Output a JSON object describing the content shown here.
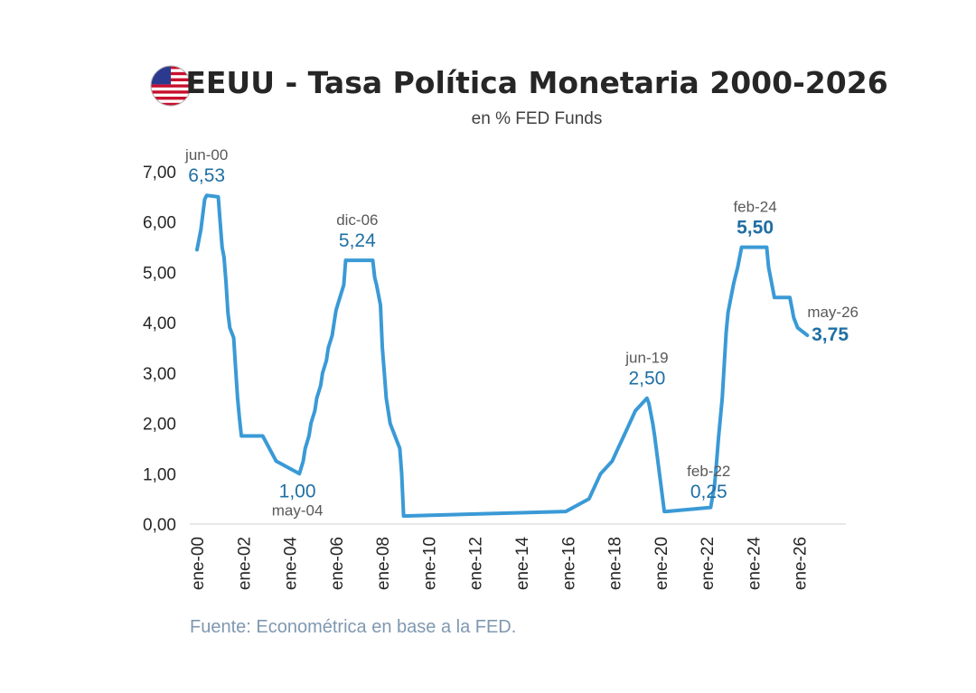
{
  "header": {
    "title": "EEUU - Tasa Política Monetaria 2000-2026",
    "subtitle": "en % FED Funds",
    "flag_icon": "us-flag-icon"
  },
  "footer": {
    "source": "Fuente: Econométrica en base a la FED."
  },
  "colors": {
    "line": "#3a9ad6",
    "annotation_value": "#1f6fa3",
    "annotation_date": "#595959",
    "axis": "#d9d9d9",
    "source": "#7f98b0"
  },
  "chart_data": {
    "type": "line",
    "title": "EEUU - Tasa Política Monetaria 2000-2026",
    "subtitle": "en % FED Funds",
    "xlabel": "",
    "ylabel": "",
    "ylim": [
      0,
      7
    ],
    "xlim": [
      "2000-01",
      "2028-01"
    ],
    "grid": false,
    "legend": "none",
    "y_ticks": [
      "0,00",
      "1,00",
      "2,00",
      "3,00",
      "4,00",
      "5,00",
      "6,00",
      "7,00"
    ],
    "x_ticks": [
      {
        "date": "2000-01",
        "label": "ene-00"
      },
      {
        "date": "2002-01",
        "label": "ene-02"
      },
      {
        "date": "2004-01",
        "label": "ene-04"
      },
      {
        "date": "2006-01",
        "label": "ene-06"
      },
      {
        "date": "2008-01",
        "label": "ene-08"
      },
      {
        "date": "2010-01",
        "label": "ene-10"
      },
      {
        "date": "2012-01",
        "label": "ene-12"
      },
      {
        "date": "2014-01",
        "label": "ene-14"
      },
      {
        "date": "2016-01",
        "label": "ene-16"
      },
      {
        "date": "2018-01",
        "label": "ene-18"
      },
      {
        "date": "2020-01",
        "label": "ene-20"
      },
      {
        "date": "2022-01",
        "label": "ene-22"
      },
      {
        "date": "2024-01",
        "label": "ene-24"
      },
      {
        "date": "2026-01",
        "label": "ene-26"
      }
    ],
    "series": [
      {
        "x": [
          "2000-01",
          "2000-03",
          "2000-05",
          "2000-06",
          "2000-12",
          "2001-01",
          "2001-02",
          "2001-03",
          "2001-04",
          "2001-05",
          "2001-06",
          "2001-08",
          "2001-09",
          "2001-10",
          "2001-11",
          "2001-12",
          "2002-11",
          "2003-06",
          "2004-06",
          "2004-08",
          "2004-09",
          "2004-11",
          "2004-12",
          "2005-02",
          "2005-03",
          "2005-05",
          "2005-06",
          "2005-08",
          "2005-09",
          "2005-11",
          "2005-12",
          "2006-01",
          "2006-03",
          "2006-05",
          "2006-06",
          "2007-08",
          "2007-09",
          "2007-10",
          "2007-12",
          "2008-01",
          "2008-02",
          "2008-03",
          "2008-05",
          "2008-10",
          "2008-11",
          "2008-12",
          "2015-12",
          "2016-12",
          "2017-03",
          "2017-06",
          "2017-12",
          "2018-03",
          "2018-06",
          "2018-09",
          "2018-12",
          "2019-06",
          "2019-07",
          "2019-09",
          "2019-10",
          "2020-03",
          "2020-04",
          "2022-03",
          "2022-05",
          "2022-06",
          "2022-07",
          "2022-09",
          "2022-11",
          "2022-12",
          "2023-02",
          "2023-03",
          "2023-05",
          "2023-07",
          "2024-08",
          "2024-09",
          "2024-11",
          "2024-12",
          "2025-08",
          "2025-09",
          "2025-10",
          "2025-12",
          "2026-05"
        ],
        "values": [
          5.45,
          5.85,
          6.45,
          6.53,
          6.5,
          6.0,
          5.5,
          5.3,
          4.8,
          4.2,
          3.9,
          3.7,
          3.1,
          2.5,
          2.1,
          1.75,
          1.75,
          1.25,
          1.0,
          1.25,
          1.5,
          1.75,
          2.0,
          2.25,
          2.5,
          2.75,
          3.0,
          3.25,
          3.5,
          3.75,
          4.0,
          4.25,
          4.5,
          4.75,
          5.24,
          5.24,
          4.9,
          4.75,
          4.35,
          3.5,
          3.0,
          2.5,
          2.0,
          1.5,
          1.0,
          0.16,
          0.25,
          0.5,
          0.75,
          1.0,
          1.25,
          1.5,
          1.75,
          2.0,
          2.25,
          2.5,
          2.4,
          2.0,
          1.75,
          0.25,
          0.25,
          0.33,
          0.77,
          1.2,
          1.7,
          2.5,
          3.8,
          4.2,
          4.6,
          4.8,
          5.1,
          5.5,
          5.5,
          5.1,
          4.7,
          4.5,
          4.5,
          4.3,
          4.1,
          3.9,
          3.75
        ]
      }
    ],
    "annotations": [
      {
        "date": "2000-06",
        "value": 6.53,
        "date_label": "jun-00",
        "value_label": "6,53",
        "position": "above",
        "bold": false
      },
      {
        "date": "2006-12",
        "value": 5.24,
        "date_label": "dic-06",
        "value_label": "5,24",
        "position": "above",
        "bold": false
      },
      {
        "date": "2004-05",
        "value": 1.0,
        "date_label": "may-04",
        "value_label": "1,00",
        "position": "below",
        "bold": false
      },
      {
        "date": "2019-06",
        "value": 2.5,
        "date_label": "jun-19",
        "value_label": "2,50",
        "position": "above",
        "bold": false
      },
      {
        "date": "2022-02",
        "value": 0.25,
        "date_label": "feb-22",
        "value_label": "0,25",
        "position": "above",
        "bold": false
      },
      {
        "date": "2024-02",
        "value": 5.5,
        "date_label": "feb-24",
        "value_label": "5,50",
        "position": "above",
        "bold": true
      },
      {
        "date": "2026-05",
        "value": 3.75,
        "date_label": "may-26",
        "value_label": "3,75",
        "position": "right",
        "bold": true
      }
    ]
  }
}
